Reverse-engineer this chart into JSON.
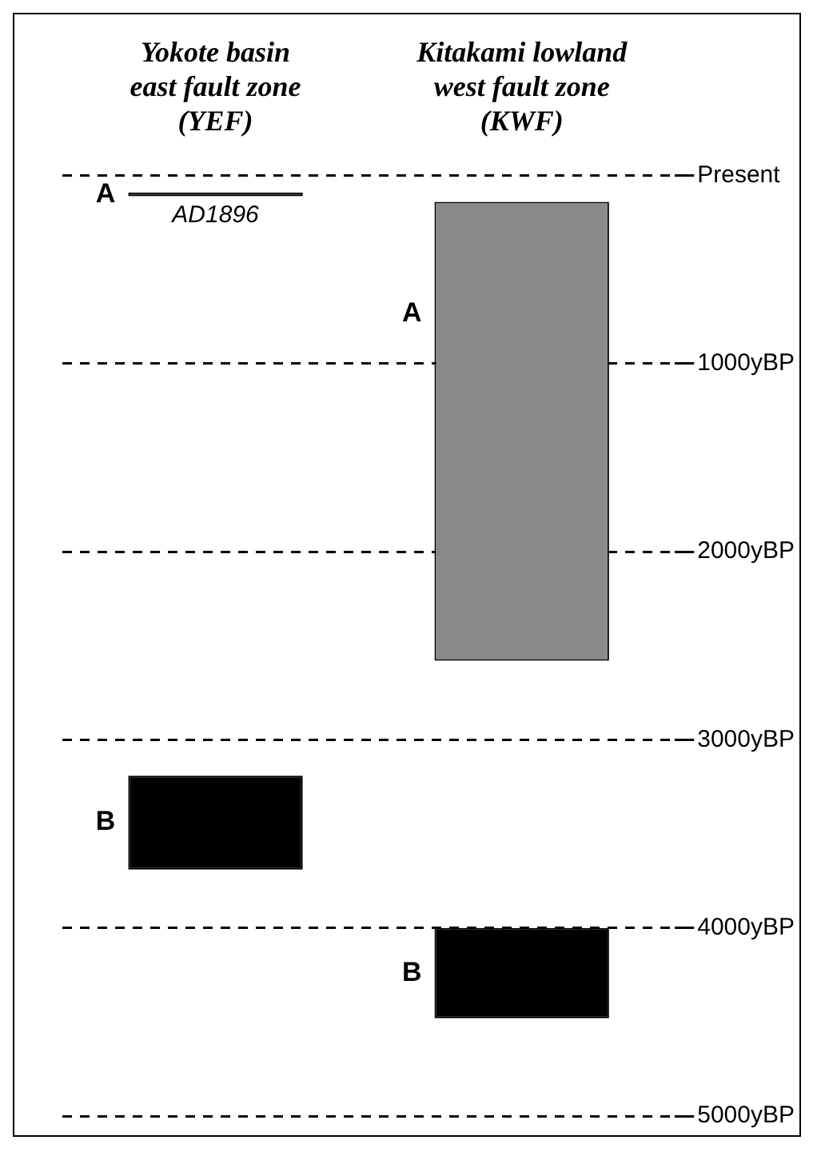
{
  "chart_data": {
    "type": "bar",
    "categories": [
      "Yokote basin\neast fault zone\n(YEF)",
      "Kitakami lowland\nwest fault zone\n(KWF)"
    ],
    "series": [
      {
        "name": "A",
        "colors": [
          "#000000",
          "#8a8a8a"
        ],
        "base": [
          90,
          140
        ],
        "values": [
          20,
          2440
        ]
      },
      {
        "name": "B",
        "colors": [
          "#000000",
          "#000000"
        ],
        "base": [
          3190,
          4000
        ],
        "values": [
          500,
          480
        ]
      }
    ],
    "ylim": [
      5000,
      0
    ],
    "yticks": [
      {
        "value": 0,
        "label": "Present"
      },
      {
        "value": 1000,
        "label": "1000yBP"
      },
      {
        "value": 2000,
        "label": "2000yBP"
      },
      {
        "value": 3000,
        "label": "3000yBP"
      },
      {
        "value": 4000,
        "label": "4000yBP"
      },
      {
        "value": 5000,
        "label": "5000yBP"
      }
    ],
    "grid": "y",
    "line_style": "dashed",
    "annotations": [
      {
        "text": "AD1896",
        "x": "Yokote basin\neast fault zone\n(YEF)",
        "y": 100
      }
    ]
  }
}
